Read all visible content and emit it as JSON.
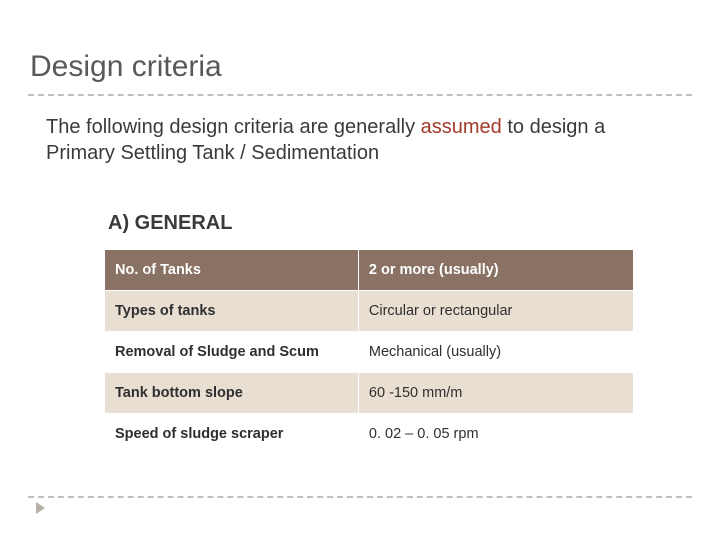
{
  "title": "Design criteria",
  "intro_pre": "The following design criteria are generally ",
  "intro_assumed": "assumed",
  "intro_post": " to design a Primary Settling Tank / Sedimentation",
  "section_label": "A) GENERAL",
  "table": {
    "type": "table",
    "header_bg": "#897264",
    "header_fg": "#ffffff",
    "alt_bg": "#e8dfd2",
    "plain_bg": "#ffffff",
    "border_color": "#ffffff",
    "col_widths_pct": [
      48,
      52
    ],
    "font_size_pt": 14.5,
    "rows": [
      {
        "style": "header",
        "param": "No. of  Tanks",
        "value": "2 or more (usually)"
      },
      {
        "style": "alt",
        "param": "Types of tanks",
        "value": "Circular or rectangular"
      },
      {
        "style": "plain",
        "param": "Removal of Sludge and Scum",
        "value": "Mechanical (usually)"
      },
      {
        "style": "alt",
        "param": "Tank bottom slope",
        "value": "60 -150 mm/m"
      },
      {
        "style": "plain",
        "param": "Speed of sludge scraper",
        "value": "0. 02 – 0. 05 rpm"
      }
    ]
  },
  "colors": {
    "title": "#595959",
    "text": "#3a3a3a",
    "assumed": "#a23b2a",
    "dash": "#bfbfbf",
    "bullet": "#b6b0a6",
    "background": "#ffffff"
  }
}
